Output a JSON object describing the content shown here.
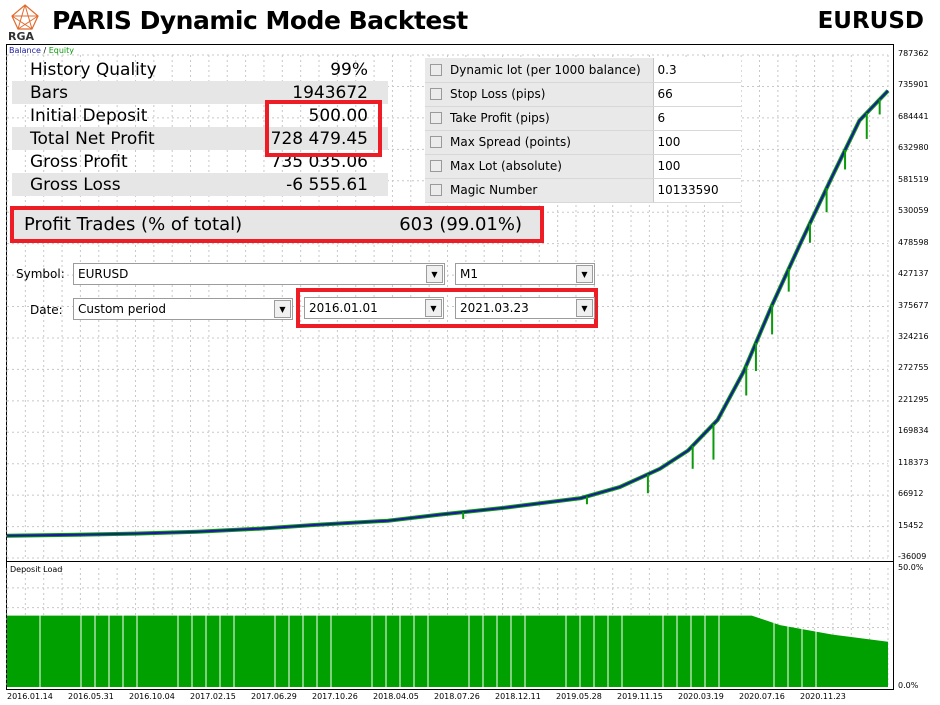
{
  "header": {
    "logo_text": "RGA",
    "title": "PARIS Dynamic Mode Backtest",
    "symbol": "EURUSD"
  },
  "legend": {
    "balance": "Balance",
    "separator": " / ",
    "equity": "Equity"
  },
  "stats": [
    {
      "label": "History Quality",
      "value": "99%"
    },
    {
      "label": "Bars",
      "value": "1943672"
    },
    {
      "label": "Initial Deposit",
      "value": "500.00"
    },
    {
      "label": "Total Net Profit",
      "value": "728 479.45"
    },
    {
      "label": "Gross Profit",
      "value": "735 035.06"
    },
    {
      "label": "Gross Loss",
      "value": "-6 555.61"
    }
  ],
  "profit_trades": {
    "label": "Profit Trades (% of total)",
    "value": "603 (99.01%)"
  },
  "params": [
    {
      "name": "Dynamic lot (per 1000 balance)",
      "value": "0.3"
    },
    {
      "name": "Stop Loss (pips)",
      "value": "66"
    },
    {
      "name": "Take Profit (pips)",
      "value": "6"
    },
    {
      "name": "Max Spread (points)",
      "value": "100"
    },
    {
      "name": "Max Lot (absolute)",
      "value": "100"
    },
    {
      "name": "Magic Number",
      "value": "10133590"
    }
  ],
  "form": {
    "symbol_label": "Symbol:",
    "symbol_value": "EURUSD",
    "period_value": "M1",
    "date_label": "Date:",
    "date_mode": "Custom period",
    "date_from": "2016.01.01",
    "date_to": "2021.03.23"
  },
  "lower_panel": {
    "title": "Deposit Load"
  },
  "colors": {
    "balance": "#1a1aa0",
    "equity": "#0a9a0a",
    "deposit_load": "#00a000",
    "highlight": "#ee1c25",
    "grid": "#c8c8c8"
  },
  "chart_data": [
    {
      "type": "line",
      "y_ticks": [
        "787362",
        "735901",
        "684441",
        "632980",
        "581519",
        "530059",
        "478598",
        "427137",
        "375677",
        "324216",
        "272755",
        "221295",
        "169834",
        "118373",
        "66912",
        "15452",
        "-36009"
      ],
      "ylim": [
        -36009,
        787362
      ],
      "x_ticks": [
        "2016.01.14",
        "2016.05.31",
        "2016.10.04",
        "2017.02.15",
        "2017.06.29",
        "2017.10.26",
        "2018.04.05",
        "2018.07.26",
        "2018.12.11",
        "2019.05.28",
        "2019.11.15",
        "2020.03.19",
        "2020.07.16",
        "2020.11.23"
      ],
      "series": [
        {
          "name": "Balance",
          "x": [
            "2016.01.01",
            "2016.05.31",
            "2016.10.04",
            "2017.02.15",
            "2017.06.29",
            "2017.10.26",
            "2018.04.05",
            "2018.07.26",
            "2018.12.11",
            "2019.05.28",
            "2019.08.20",
            "2019.11.15",
            "2020.01.15",
            "2020.03.19",
            "2020.05.15",
            "2020.07.16",
            "2020.09.15",
            "2020.11.23",
            "2021.01.20",
            "2021.03.23"
          ],
          "y": [
            500,
            2000,
            4000,
            7000,
            12000,
            18000,
            25000,
            35000,
            46000,
            62000,
            80000,
            110000,
            140000,
            190000,
            270000,
            380000,
            480000,
            590000,
            680000,
            728979
          ]
        }
      ],
      "equity_drawdowns": [
        {
          "x": "2018.09.15",
          "low": 28000
        },
        {
          "x": "2019.06.10",
          "low": 52000
        },
        {
          "x": "2019.10.20",
          "low": 70000
        },
        {
          "x": "2020.01.25",
          "low": 110000
        },
        {
          "x": "2020.03.10",
          "low": 125000
        },
        {
          "x": "2020.05.20",
          "low": 230000
        },
        {
          "x": "2020.06.10",
          "low": 270000
        },
        {
          "x": "2020.07.15",
          "low": 330000
        },
        {
          "x": "2020.08.20",
          "low": 400000
        },
        {
          "x": "2020.10.05",
          "low": 480000
        },
        {
          "x": "2020.11.10",
          "low": 530000
        },
        {
          "x": "2020.12.20",
          "low": 600000
        },
        {
          "x": "2021.02.05",
          "low": 650000
        },
        {
          "x": "2021.03.05",
          "low": 690000
        }
      ]
    },
    {
      "type": "bar",
      "title": "Deposit Load",
      "y_ticks": [
        "50.0%",
        "0.0%"
      ],
      "ylim": [
        0,
        50
      ],
      "x_ticks": [
        "2016.01.14",
        "2016.05.31",
        "2016.10.04",
        "2017.02.15",
        "2017.06.29",
        "2017.10.26",
        "2018.04.05",
        "2018.07.26",
        "2018.12.11",
        "2019.05.28",
        "2019.11.15",
        "2020.03.19",
        "2020.07.16",
        "2020.11.23"
      ],
      "x": [
        "2016.01.01",
        "2017.06.29",
        "2019.01.01",
        "2020.06.01",
        "2020.08.01",
        "2020.11.23",
        "2021.03.23"
      ],
      "values": [
        30,
        30,
        30,
        30,
        26,
        22,
        19
      ]
    }
  ]
}
